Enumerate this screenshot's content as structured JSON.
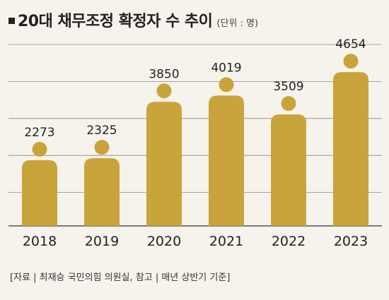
{
  "title": "20대 채무조정 확정자 수 추이",
  "unit": "(단위 : 명)",
  "source": "[자료 | 최재승 국민의힘 의원실, 참고 | 매년 상반기 기준]",
  "colors": {
    "figure": "#c9a43a",
    "grid": "#333333",
    "background": "#f6f3ec"
  },
  "chart_data": {
    "type": "bar",
    "mark": "person-pictogram",
    "title": "20대 채무조정 확정자 수 추이",
    "unit": "(단위 : 명)",
    "categories": [
      "2018",
      "2019",
      "2020",
      "2021",
      "2022",
      "2023"
    ],
    "values": [
      2273,
      2325,
      3850,
      4019,
      3509,
      4654
    ],
    "ylim": [
      0,
      5000
    ],
    "grid": true
  }
}
